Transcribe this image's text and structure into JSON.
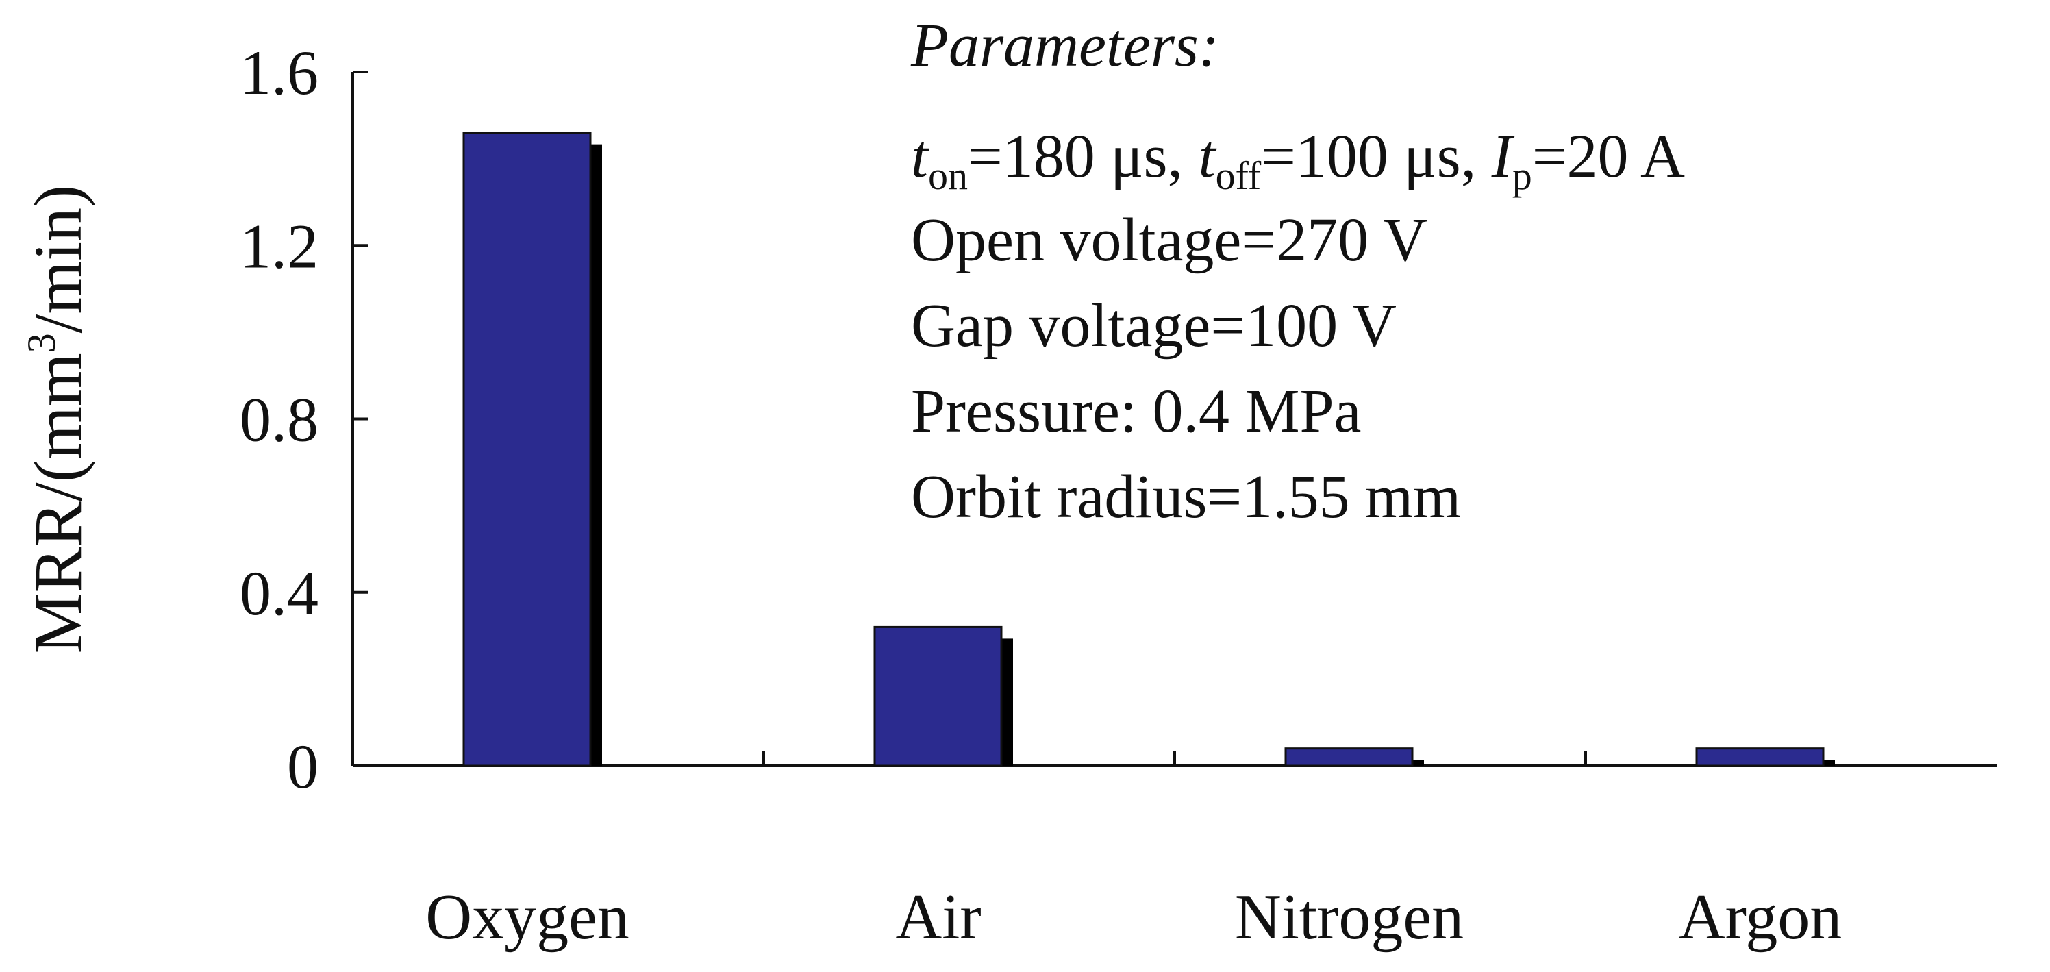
{
  "chart_data": {
    "type": "bar",
    "title": "",
    "xlabel": "",
    "ylabel": {
      "prefix": "MRR/(mm",
      "superscript": "3",
      "suffix": "/min)"
    },
    "categories": [
      "Oxygen",
      "Air",
      "Nitrogen",
      "Argon"
    ],
    "series": [
      {
        "values": [
          1.46,
          0.32,
          0.04,
          0.04
        ]
      }
    ],
    "ylim": [
      0,
      1.6
    ],
    "yticks": [
      "0",
      "0.4",
      "0.8",
      "1.2",
      "1.6"
    ],
    "yticks_values": [
      0,
      0.4,
      0.8,
      1.2,
      1.6
    ],
    "grid": false,
    "bar_color": "#2b2b8f",
    "shadow_color": "#000000",
    "annotations": {
      "heading": "Parameters:",
      "line1": {
        "t_sym": "t",
        "on_sub": "on",
        "on_value": "=180 μs, ",
        "off_sub": "off",
        "off_value": "=100 μs, ",
        "i_sym": "I",
        "p_sub": "p",
        "p_value": "=20 A"
      },
      "lines": [
        "Open voltage=270 V",
        "Gap voltage=100 V",
        "Pressure: 0.4 MPa",
        "Orbit radius=1.55 mm"
      ]
    }
  }
}
